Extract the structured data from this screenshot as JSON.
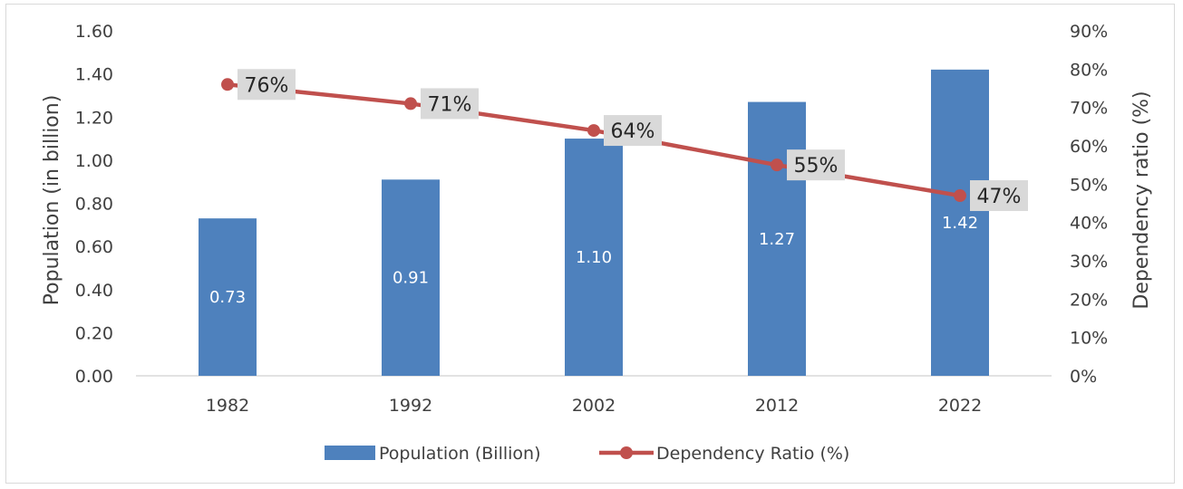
{
  "chart_data": {
    "type": "bar",
    "categories": [
      "1982",
      "1992",
      "2002",
      "2012",
      "2022"
    ],
    "series": [
      {
        "name": "Population (Billion)",
        "type": "bar",
        "axis": "left",
        "values": [
          0.73,
          0.91,
          1.1,
          1.27,
          1.42
        ],
        "labels": [
          "0.73",
          "0.91",
          "1.10",
          "1.27",
          "1.42"
        ],
        "color": "#4e81bd"
      },
      {
        "name": "Dependency Ratio (%)",
        "type": "line",
        "axis": "right",
        "values": [
          76,
          71,
          64,
          55,
          47
        ],
        "labels": [
          "76%",
          "71%",
          "64%",
          "55%",
          "47%"
        ],
        "color": "#c0504d"
      }
    ],
    "ylabel": "Population (in billion)",
    "y2label": "Dependency ratio (%)",
    "ylim": [
      0,
      1.6
    ],
    "y2lim": [
      0,
      90
    ],
    "yticks": [
      "0.00",
      "0.20",
      "0.40",
      "0.60",
      "0.80",
      "1.00",
      "1.20",
      "1.40",
      "1.60"
    ],
    "y2ticks": [
      "0%",
      "10%",
      "20%",
      "30%",
      "40%",
      "50%",
      "60%",
      "70%",
      "80%",
      "90%"
    ],
    "grid": false,
    "legend": "bottom",
    "label_box_color": "#d9d9d9"
  }
}
